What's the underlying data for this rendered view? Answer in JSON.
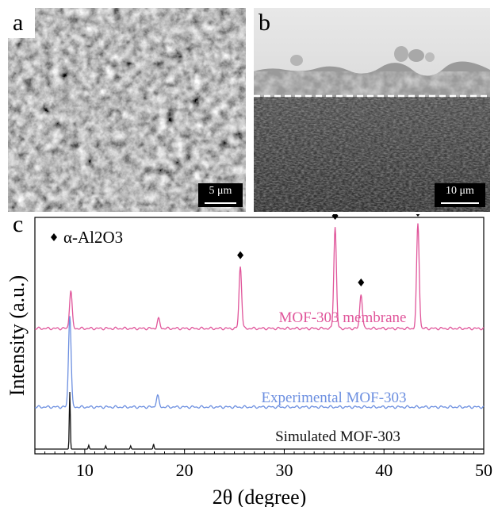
{
  "panels": {
    "a": {
      "letter": "a",
      "scale_label": "5 μm"
    },
    "b": {
      "letter": "b",
      "scale_label": "10 μm"
    },
    "c": {
      "letter": "c"
    }
  },
  "chart_data": {
    "type": "line",
    "xlabel": "2θ (degree)",
    "ylabel": "Intensity (a.u.)",
    "xlim": [
      5,
      50
    ],
    "xticks": [
      10,
      20,
      30,
      40,
      50
    ],
    "y_ticks_shown": false,
    "legend": {
      "marker": "♦",
      "label": "α-Al2O3",
      "position": "top-left"
    },
    "series": [
      {
        "name": "MOF-303 membrane",
        "color": "#e0559a",
        "baseline": 0.0,
        "peaks": [
          {
            "x": 8.6,
            "h": 0.6
          },
          {
            "x": 17.4,
            "h": 0.15
          },
          {
            "x": 25.6,
            "h": 0.98,
            "marked": true
          },
          {
            "x": 35.1,
            "h": 1.6,
            "marked": true
          },
          {
            "x": 37.7,
            "h": 0.55,
            "marked": true
          },
          {
            "x": 43.4,
            "h": 1.65,
            "marked": true
          }
        ]
      },
      {
        "name": "Experimental MOF-303",
        "color": "#6c8fe0",
        "baseline": 0.0,
        "peaks": [
          {
            "x": 8.5,
            "h": 1.45
          },
          {
            "x": 17.3,
            "h": 0.18
          }
        ]
      },
      {
        "name": "Simulated MOF-303",
        "color": "#111111",
        "baseline": 0.0,
        "peaks": [
          {
            "x": 8.5,
            "h": 0.9
          },
          {
            "x": 10.4,
            "h": 0.06
          },
          {
            "x": 12.1,
            "h": 0.05
          },
          {
            "x": 14.6,
            "h": 0.05
          },
          {
            "x": 16.9,
            "h": 0.08
          }
        ]
      }
    ]
  }
}
